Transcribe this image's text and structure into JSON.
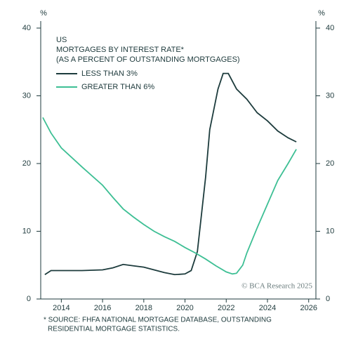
{
  "chart_data": {
    "type": "line",
    "title": "US",
    "subtitle": [
      "MORTGAGES BY INTEREST RATE*",
      "(AS A PERCENT OF OUTSTANDING MORTGAGES)"
    ],
    "y_label": "%",
    "y2_label": "%",
    "watermark": "© BCA Research 2025",
    "notes": [
      "* SOURCE: FHFA NATIONAL MORTGAGE DATABASE, OUTSTANDING",
      "RESIDENTIAL MORTGAGE STATISTICS."
    ],
    "xlim": [
      2013,
      2026.35
    ],
    "xticks": [
      2014,
      2016,
      2018,
      2020,
      2022,
      2024,
      2026
    ],
    "ylim": [
      0,
      40
    ],
    "yticks": [
      0,
      10,
      20,
      30,
      40
    ],
    "y2lim": [
      0,
      40
    ],
    "y2ticks": [
      0,
      10,
      20,
      30,
      40
    ],
    "series": [
      {
        "name": "LESS THAN 3%",
        "color": "#1c3b3c",
        "x": [
          2013.2,
          2013.5,
          2014,
          2015,
          2016,
          2016.5,
          2017,
          2017.5,
          2018,
          2018.5,
          2019,
          2019.5,
          2020,
          2020.3,
          2020.6,
          2021,
          2021.2,
          2021.6,
          2021.85,
          2022.1,
          2022.5,
          2023,
          2023.5,
          2024,
          2024.5,
          2025,
          2025.4
        ],
        "values": [
          3.6,
          4.2,
          4.2,
          4.2,
          4.3,
          4.6,
          5.1,
          4.9,
          4.7,
          4.3,
          3.9,
          3.6,
          3.7,
          4.2,
          7,
          18,
          25,
          31,
          33.3,
          33.3,
          31,
          29.5,
          27.5,
          26.3,
          24.8,
          23.8,
          23.2
        ]
      },
      {
        "name": "GREATER THAN 6%",
        "color": "#3dbf94",
        "x": [
          2013.1,
          2013.5,
          2014,
          2015,
          2016,
          2016.5,
          2017,
          2017.5,
          2018,
          2018.5,
          2019,
          2019.5,
          2020,
          2020.5,
          2021,
          2021.5,
          2022,
          2022.3,
          2022.5,
          2022.8,
          2023,
          2023.5,
          2024,
          2024.5,
          2025,
          2025.4
        ],
        "values": [
          26.8,
          24.5,
          22.3,
          19.5,
          16.8,
          15,
          13.3,
          12.1,
          11,
          10,
          9.2,
          8.5,
          7.6,
          6.8,
          5.9,
          4.9,
          4.0,
          3.7,
          3.8,
          5,
          6.8,
          10.5,
          14,
          17.5,
          20,
          22.1
        ]
      }
    ]
  }
}
